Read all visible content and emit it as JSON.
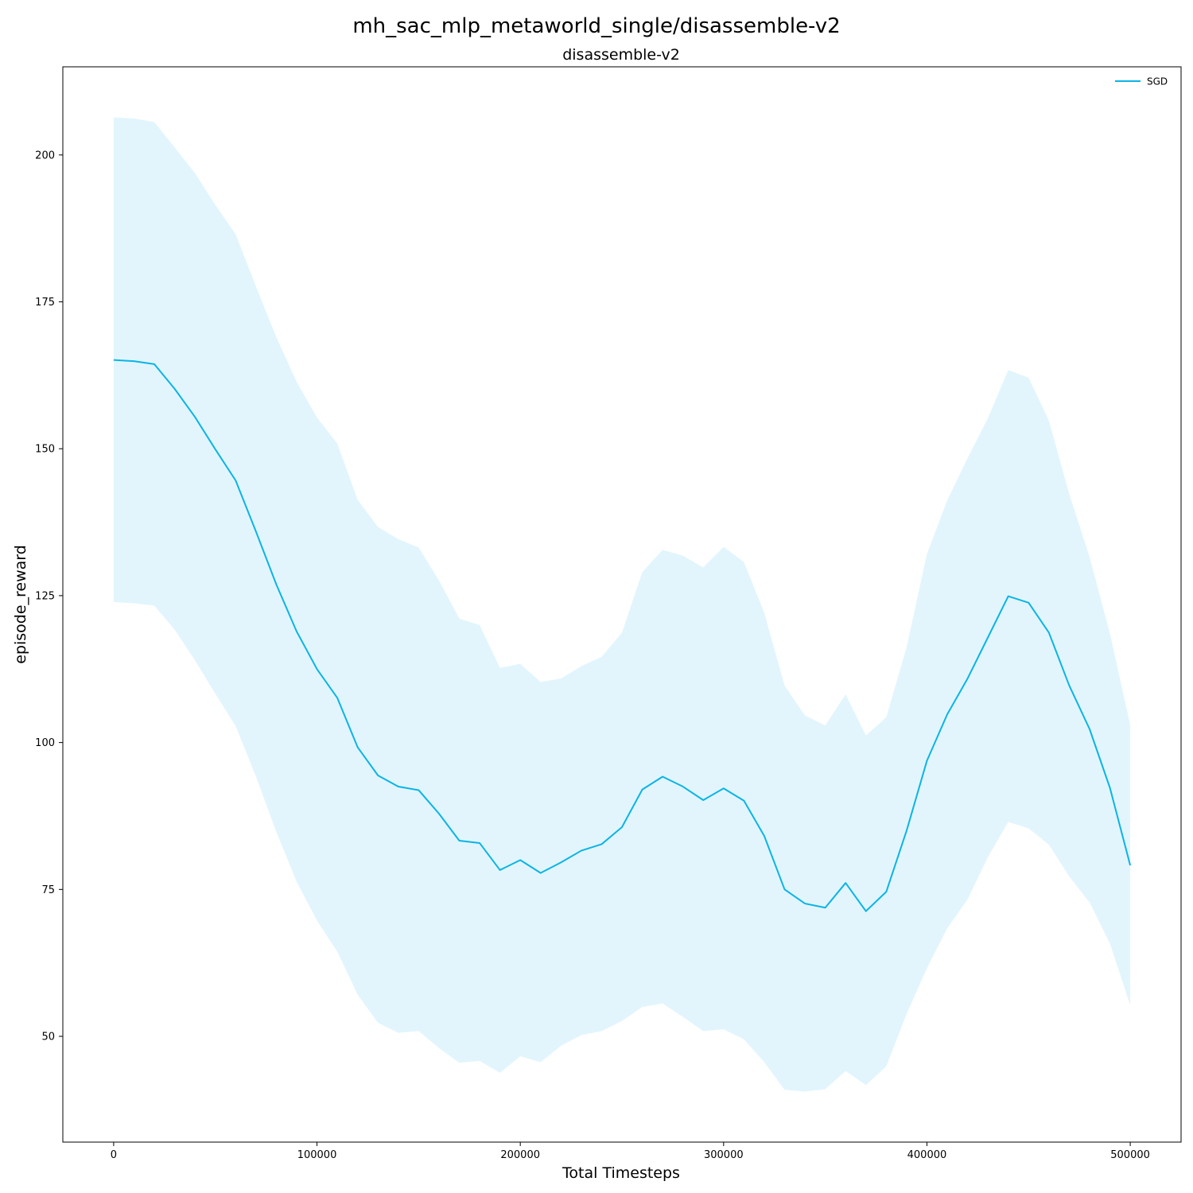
{
  "figure": {
    "suptitle": "mh_sac_mlp_metaworld_single/disassemble-v2"
  },
  "chart_data": {
    "type": "line",
    "title": "disassemble-v2",
    "xlabel": "Total Timesteps",
    "ylabel": "episode_reward",
    "xlim": [
      -25000,
      525000
    ],
    "ylim": [
      32,
      215
    ],
    "xticks": [
      0,
      100000,
      200000,
      300000,
      400000,
      500000
    ],
    "yticks": [
      50,
      75,
      100,
      125,
      150,
      175,
      200
    ],
    "grid": false,
    "legend_position": "top-right",
    "series": [
      {
        "name": "SGD",
        "color": "#0ab4e6",
        "band_color": "#e2f5fc",
        "x": [
          0,
          10000,
          20000,
          30000,
          40000,
          50000,
          60000,
          70000,
          80000,
          90000,
          100000,
          110000,
          120000,
          130000,
          140000,
          150000,
          160000,
          170000,
          180000,
          190000,
          200000,
          210000,
          220000,
          230000,
          240000,
          250000,
          260000,
          270000,
          280000,
          290000,
          300000,
          310000,
          320000,
          330000,
          340000,
          350000,
          360000,
          370000,
          380000,
          390000,
          400000,
          410000,
          420000,
          430000,
          440000,
          450000,
          460000,
          470000,
          480000,
          490000,
          500000
        ],
        "mean": [
          165.1,
          164.9,
          164.4,
          160.2,
          155.4,
          149.9,
          144.6,
          135.9,
          126.9,
          118.9,
          112.5,
          107.6,
          99.2,
          94.4,
          92.5,
          91.9,
          87.9,
          83.3,
          82.9,
          78.3,
          80.0,
          77.8,
          79.6,
          81.6,
          82.7,
          85.6,
          92.0,
          94.2,
          92.5,
          90.2,
          92.2,
          90.1,
          84.1,
          75.0,
          72.6,
          71.9,
          76.1,
          71.3,
          74.6,
          85.0,
          96.9,
          104.8,
          110.9,
          117.9,
          124.9,
          123.8,
          118.7,
          109.7,
          102.3,
          92.3,
          79.1
        ],
        "upper": [
          206.4,
          206.2,
          205.6,
          201.3,
          196.9,
          191.5,
          186.5,
          177.6,
          169.0,
          161.4,
          155.3,
          150.9,
          141.3,
          136.7,
          134.6,
          133.2,
          127.6,
          121.1,
          120.0,
          112.7,
          113.4,
          110.3,
          110.9,
          113.0,
          114.6,
          118.7,
          129.0,
          132.8,
          131.8,
          129.8,
          133.3,
          130.7,
          122.1,
          109.7,
          104.6,
          102.9,
          108.2,
          101.2,
          104.3,
          116.2,
          132.1,
          141.2,
          148.4,
          155.2,
          163.4,
          162.1,
          154.8,
          142.3,
          131.6,
          118.6,
          103.0
        ],
        "lower": [
          123.9,
          123.7,
          123.3,
          119.2,
          114.0,
          108.3,
          102.8,
          94.2,
          84.8,
          76.3,
          69.7,
          64.4,
          57.1,
          52.3,
          50.6,
          50.9,
          48.0,
          45.5,
          45.8,
          43.8,
          46.6,
          45.6,
          48.4,
          50.2,
          50.9,
          52.6,
          55.0,
          55.6,
          53.3,
          50.9,
          51.2,
          49.5,
          45.6,
          40.9,
          40.6,
          41.0,
          44.1,
          41.7,
          44.9,
          53.8,
          61.6,
          68.4,
          73.3,
          80.5,
          86.5,
          85.4,
          82.6,
          77.2,
          72.8,
          65.8,
          55.3
        ]
      }
    ]
  }
}
